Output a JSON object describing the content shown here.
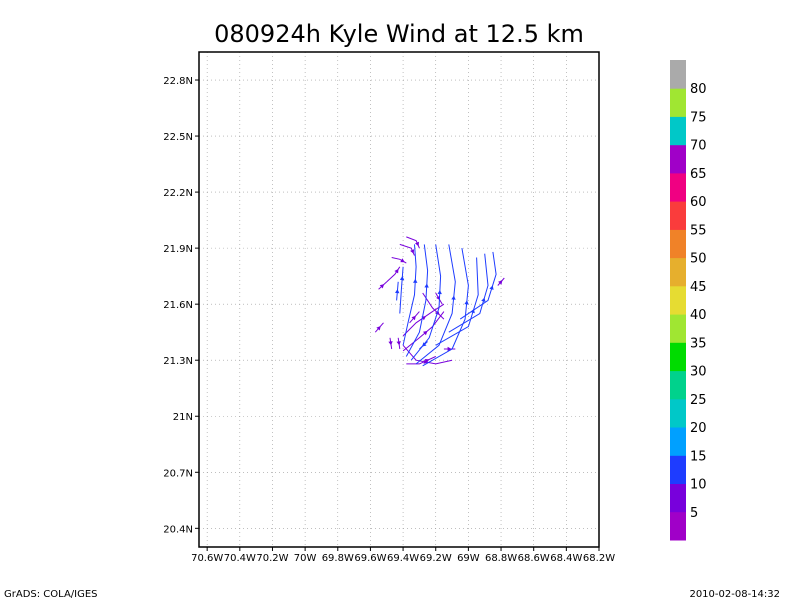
{
  "chart_data": {
    "type": "streamline",
    "title": "080924h Kyle Wind at 12.5 km",
    "grid": true,
    "x_ticks": [
      "70.6W",
      "70.4W",
      "70.2W",
      "70W",
      "69.8W",
      "69.6W",
      "69.4W",
      "69.2W",
      "69W",
      "68.8W",
      "68.6W",
      "68.4W",
      "68.2W"
    ],
    "x_tick_values": [
      -70.6,
      -70.4,
      -70.2,
      -70.0,
      -69.8,
      -69.6,
      -69.4,
      -69.2,
      -69.0,
      -68.8,
      -68.6,
      -68.4,
      -68.2
    ],
    "y_ticks": [
      "20.4N",
      "20.7N",
      "21N",
      "21.3N",
      "21.6N",
      "21.9N",
      "22.2N",
      "22.5N",
      "22.8N"
    ],
    "y_tick_values": [
      20.4,
      20.7,
      21.0,
      21.3,
      21.6,
      21.9,
      22.2,
      22.5,
      22.8
    ],
    "xlim": [
      -70.65,
      -68.2
    ],
    "ylim": [
      20.3,
      22.95
    ],
    "colorbar": {
      "labels": [
        "5",
        "10",
        "15",
        "20",
        "25",
        "30",
        "35",
        "40",
        "45",
        "50",
        "55",
        "60",
        "65",
        "70",
        "75",
        "80"
      ],
      "colors": [
        "#a000c8",
        "#7800dc",
        "#1e3cff",
        "#00a0ff",
        "#00c8c8",
        "#00d28c",
        "#00dc00",
        "#a0e632",
        "#e6dc32",
        "#e6af2d",
        "#f08228",
        "#fa3c3c",
        "#f00082",
        "#a000c8",
        "#00c8c8",
        "#a0e632",
        "#aaaaaa"
      ]
    },
    "streamlines": [
      {
        "speed": 8,
        "points": [
          [
            -69.38,
            21.96
          ],
          [
            -69.32,
            21.94
          ],
          [
            -69.3,
            21.9
          ]
        ]
      },
      {
        "speed": 8,
        "points": [
          [
            -69.42,
            21.92
          ],
          [
            -69.35,
            21.9
          ],
          [
            -69.33,
            21.86
          ]
        ]
      },
      {
        "speed": 8,
        "points": [
          [
            -69.47,
            21.85
          ],
          [
            -69.42,
            21.84
          ],
          [
            -69.38,
            21.82
          ]
        ]
      },
      {
        "speed": 8,
        "points": [
          [
            -69.5,
            21.72
          ],
          [
            -69.45,
            21.76
          ],
          [
            -69.42,
            21.8
          ]
        ]
      },
      {
        "speed": 8,
        "points": [
          [
            -69.55,
            21.68
          ],
          [
            -69.5,
            21.72
          ]
        ]
      },
      {
        "speed": 8,
        "points": [
          [
            -69.57,
            21.45
          ],
          [
            -69.52,
            21.5
          ]
        ]
      },
      {
        "speed": 8,
        "points": [
          [
            -69.48,
            21.42
          ],
          [
            -69.47,
            21.36
          ]
        ]
      },
      {
        "speed": 8,
        "points": [
          [
            -69.43,
            21.42
          ],
          [
            -69.42,
            21.36
          ]
        ]
      },
      {
        "speed": 8,
        "points": [
          [
            -69.4,
            21.38
          ],
          [
            -69.32,
            21.3
          ],
          [
            -69.2,
            21.28
          ],
          [
            -69.1,
            21.3
          ]
        ]
      },
      {
        "speed": 8,
        "points": [
          [
            -69.38,
            21.28
          ],
          [
            -69.3,
            21.28
          ],
          [
            -69.2,
            21.32
          ]
        ]
      },
      {
        "speed": 8,
        "points": [
          [
            -69.15,
            21.36
          ],
          [
            -69.08,
            21.36
          ]
        ]
      },
      {
        "speed": 8,
        "points": [
          [
            -69.28,
            21.66
          ],
          [
            -69.22,
            21.58
          ],
          [
            -69.15,
            21.52
          ]
        ]
      },
      {
        "speed": 8,
        "points": [
          [
            -69.4,
            21.43
          ],
          [
            -69.32,
            21.5
          ],
          [
            -69.22,
            21.56
          ],
          [
            -69.15,
            21.6
          ]
        ]
      },
      {
        "speed": 8,
        "points": [
          [
            -69.4,
            21.35
          ],
          [
            -69.3,
            21.42
          ],
          [
            -69.22,
            21.48
          ],
          [
            -69.15,
            21.56
          ]
        ]
      },
      {
        "speed": 8,
        "points": [
          [
            -69.2,
            21.66
          ],
          [
            -69.16,
            21.6
          ]
        ]
      },
      {
        "speed": 8,
        "points": [
          [
            -69.36,
            21.5
          ],
          [
            -69.3,
            21.56
          ]
        ]
      },
      {
        "speed": 8,
        "points": [
          [
            -68.82,
            21.7
          ],
          [
            -68.78,
            21.74
          ]
        ]
      },
      {
        "speed": 12,
        "points": [
          [
            -69.4,
            21.38
          ],
          [
            -69.37,
            21.5
          ],
          [
            -69.33,
            21.65
          ],
          [
            -69.32,
            21.8
          ],
          [
            -69.33,
            21.92
          ]
        ]
      },
      {
        "speed": 12,
        "points": [
          [
            -69.38,
            21.32
          ],
          [
            -69.3,
            21.45
          ],
          [
            -69.26,
            21.62
          ],
          [
            -69.25,
            21.78
          ],
          [
            -69.27,
            21.92
          ]
        ]
      },
      {
        "speed": 12,
        "points": [
          [
            -69.35,
            21.3
          ],
          [
            -69.24,
            21.42
          ],
          [
            -69.18,
            21.58
          ],
          [
            -69.17,
            21.75
          ],
          [
            -69.2,
            21.92
          ]
        ]
      },
      {
        "speed": 12,
        "points": [
          [
            -69.32,
            21.28
          ],
          [
            -69.18,
            21.38
          ],
          [
            -69.1,
            21.55
          ],
          [
            -69.08,
            21.72
          ],
          [
            -69.12,
            21.92
          ]
        ]
      },
      {
        "speed": 12,
        "points": [
          [
            -69.28,
            21.27
          ],
          [
            -69.1,
            21.36
          ],
          [
            -69.02,
            21.52
          ],
          [
            -69.0,
            21.7
          ],
          [
            -69.04,
            21.9
          ]
        ]
      },
      {
        "speed": 12,
        "points": [
          [
            -69.2,
            21.38
          ],
          [
            -69.0,
            21.48
          ],
          [
            -68.94,
            21.65
          ],
          [
            -68.95,
            21.85
          ]
        ]
      },
      {
        "speed": 12,
        "points": [
          [
            -69.12,
            21.45
          ],
          [
            -68.93,
            21.55
          ],
          [
            -68.88,
            21.7
          ],
          [
            -68.9,
            21.87
          ]
        ]
      },
      {
        "speed": 12,
        "points": [
          [
            -69.05,
            21.52
          ],
          [
            -68.88,
            21.62
          ],
          [
            -68.83,
            21.76
          ],
          [
            -68.85,
            21.88
          ]
        ]
      },
      {
        "speed": 12,
        "points": [
          [
            -69.42,
            21.55
          ],
          [
            -69.41,
            21.68
          ],
          [
            -69.4,
            21.8
          ]
        ]
      },
      {
        "speed": 12,
        "points": [
          [
            -69.44,
            21.62
          ],
          [
            -69.43,
            21.72
          ]
        ]
      },
      {
        "speed": 12,
        "points": [
          [
            -69.25,
            21.4
          ],
          [
            -69.3,
            21.36
          ]
        ]
      }
    ]
  },
  "footer": {
    "left": "GrADS: COLA/IGES",
    "right": "2010-02-08-14:32"
  }
}
